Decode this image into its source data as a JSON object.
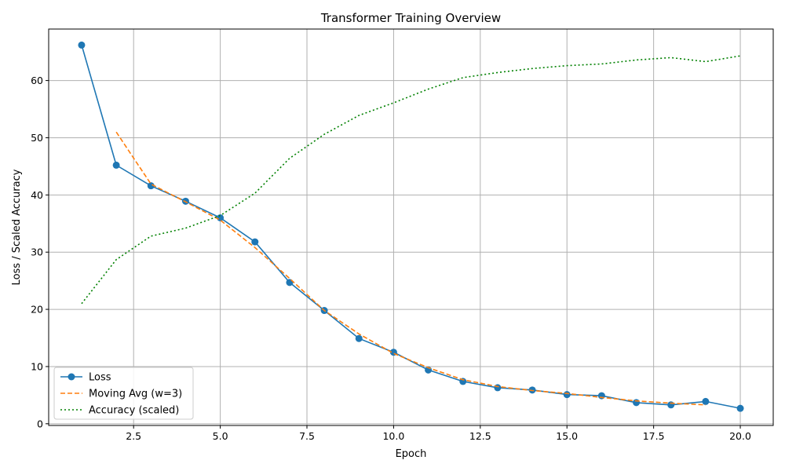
{
  "chart_data": {
    "type": "line",
    "title": "Transformer Training Overview",
    "xlabel": "Epoch",
    "ylabel": "Loss / Scaled Accuracy",
    "xlim": [
      0.05,
      20.95
    ],
    "ylim": [
      -0.3,
      69.0
    ],
    "xticks": [
      2.5,
      5.0,
      7.5,
      10.0,
      12.5,
      15.0,
      17.5,
      20.0
    ],
    "xtick_labels": [
      "2.5",
      "5.0",
      "7.5",
      "10.0",
      "12.5",
      "15.0",
      "17.5",
      "20.0"
    ],
    "yticks": [
      0,
      10,
      20,
      30,
      40,
      50,
      60
    ],
    "ytick_labels": [
      "0",
      "10",
      "20",
      "30",
      "40",
      "50",
      "60"
    ],
    "grid": true,
    "legend_position": "lower-left",
    "series": [
      {
        "name": "Loss",
        "color": "#1f77b4",
        "style": "solid",
        "marker": "circle",
        "x": [
          1,
          2,
          3,
          4,
          5,
          6,
          7,
          8,
          9,
          10,
          11,
          12,
          13,
          14,
          15,
          16,
          17,
          18,
          19,
          20
        ],
        "y": [
          66.2,
          45.2,
          41.6,
          38.9,
          36.0,
          31.8,
          24.7,
          19.8,
          14.9,
          12.5,
          9.4,
          7.4,
          6.3,
          5.9,
          5.1,
          4.9,
          3.7,
          3.3,
          3.9,
          2.7
        ]
      },
      {
        "name": "Moving Avg (w=3)",
        "color": "#ff7f0e",
        "style": "dashed",
        "marker": "none",
        "x": [
          2,
          3,
          4,
          5,
          6,
          7,
          8,
          9,
          10,
          11,
          12,
          13,
          14,
          15,
          16,
          17,
          18,
          19
        ],
        "y": [
          51.0,
          41.9,
          38.8,
          35.6,
          30.8,
          25.4,
          19.8,
          15.7,
          12.3,
          9.8,
          7.7,
          6.5,
          5.8,
          5.3,
          4.6,
          4.0,
          3.6,
          3.3
        ]
      },
      {
        "name": "Accuracy (scaled)",
        "color": "#008000",
        "style": "dotted",
        "marker": "none",
        "x": [
          1,
          2,
          3,
          4,
          5,
          6,
          7,
          8,
          9,
          10,
          11,
          12,
          13,
          14,
          15,
          16,
          17,
          18,
          19,
          20
        ],
        "y": [
          21.0,
          28.7,
          32.8,
          34.2,
          36.4,
          40.3,
          46.4,
          50.6,
          53.9,
          56.1,
          58.5,
          60.5,
          61.4,
          62.1,
          62.6,
          62.9,
          63.6,
          64.0,
          63.3,
          64.3
        ]
      }
    ]
  }
}
